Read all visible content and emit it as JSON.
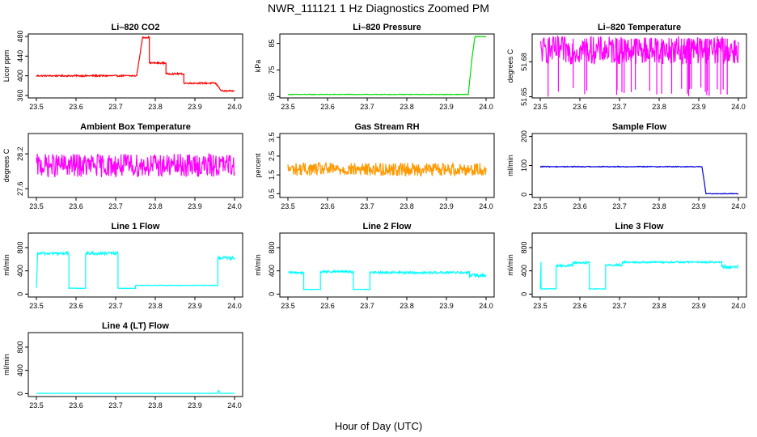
{
  "figure": {
    "title": "NWR_111121  1 Hz Diagnostics Zoomed PM",
    "xlabel": "Hour of Day (UTC)"
  },
  "chart_data": [
    {
      "type": "line",
      "title": "Li–820 CO2",
      "ylabel": "Licor ppm",
      "color": "#ff0000",
      "xlim": [
        23.5,
        24.0
      ],
      "ylim": [
        355,
        485
      ],
      "xticks": [
        "23.5",
        "23.6",
        "23.7",
        "23.8",
        "23.9",
        "24.0"
      ],
      "yticks": [
        {
          "v": 360,
          "label": "360"
        },
        {
          "v": 400,
          "label": "400"
        },
        {
          "v": 440,
          "label": "440"
        },
        {
          "v": 480,
          "label": "480"
        }
      ],
      "segments": [
        {
          "x0": 23.5,
          "x1": 23.753,
          "y": 400,
          "noise": 1.5
        },
        {
          "x0": 23.753,
          "x1": 23.768,
          "y": 400,
          "y_end": 478,
          "noise": 1.5
        },
        {
          "x0": 23.768,
          "x1": 23.785,
          "y": 478,
          "noise": 1.5
        },
        {
          "x0": 23.785,
          "x1": 23.827,
          "y": 426,
          "noise": 1.5
        },
        {
          "x0": 23.827,
          "x1": 23.872,
          "y": 404,
          "noise": 1.5
        },
        {
          "x0": 23.872,
          "x1": 23.952,
          "y": 385,
          "noise": 1.5
        },
        {
          "x0": 23.952,
          "x1": 23.968,
          "y": 385,
          "y_end": 369,
          "noise": 1.5
        },
        {
          "x0": 23.968,
          "x1": 24.0,
          "y": 369,
          "noise": 1.5
        }
      ]
    },
    {
      "type": "line",
      "title": "Li–820 Pressure",
      "ylabel": "kPa",
      "color": "#00dd00",
      "xlim": [
        23.5,
        24.0
      ],
      "ylim": [
        64.5,
        88.5
      ],
      "xticks": [
        "23.5",
        "23.6",
        "23.7",
        "23.8",
        "23.9",
        "24.0"
      ],
      "yticks": [
        {
          "v": 65,
          "label": "65"
        },
        {
          "v": 75,
          "label": "75"
        },
        {
          "v": 85,
          "label": "85"
        }
      ],
      "segments": [
        {
          "x0": 23.5,
          "x1": 23.955,
          "y": 65.8,
          "noise": 0.1
        },
        {
          "x0": 23.955,
          "x1": 23.965,
          "y": 65.8,
          "y_end": 80,
          "noise": 0.2
        },
        {
          "x0": 23.965,
          "x1": 23.972,
          "y": 80,
          "y_end": 87.5,
          "noise": 0.2
        },
        {
          "x0": 23.972,
          "x1": 24.0,
          "y": 87.5,
          "noise": 0.1
        }
      ]
    },
    {
      "type": "line",
      "title": "Li–820 Temperature",
      "ylabel": "degrees C",
      "color": "#ff00ff",
      "xlim": [
        23.5,
        24.0
      ],
      "ylim": [
        51.649,
        51.704
      ],
      "xticks": [
        "23.5",
        "23.6",
        "23.7",
        "23.8",
        "23.9",
        "24.0"
      ],
      "yticks": [
        {
          "v": 51.65,
          "label": "51.65"
        },
        {
          "v": 51.68,
          "label": "51.68"
        }
      ],
      "segments": [
        {
          "x0": 23.5,
          "x1": 24.0,
          "y": 51.69,
          "noise": 0.012
        }
      ],
      "spikes": {
        "min": 51.65,
        "max": 51.7,
        "count": 30
      }
    },
    {
      "type": "line",
      "title": "Ambient Box Temperature",
      "ylabel": "degrees C",
      "color": "#ff00ff",
      "xlim": [
        23.5,
        24.0
      ],
      "ylim": [
        27.45,
        28.55
      ],
      "xticks": [
        "23.5",
        "23.6",
        "23.7",
        "23.8",
        "23.9",
        "24.0"
      ],
      "yticks": [
        {
          "v": 27.6,
          "label": "27.6"
        },
        {
          "v": 28.2,
          "label": "28.2"
        }
      ],
      "segments": [
        {
          "x0": 23.5,
          "x1": 24.0,
          "y": 28.0,
          "noise": 0.2
        }
      ]
    },
    {
      "type": "line",
      "title": "Gas Stream RH",
      "ylabel": "percent",
      "color": "#ff9900",
      "xlim": [
        23.5,
        24.0
      ],
      "ylim": [
        0.3,
        3.7
      ],
      "xticks": [
        "23.5",
        "23.6",
        "23.7",
        "23.8",
        "23.9",
        "24.0"
      ],
      "yticks": [
        {
          "v": 0.5,
          "label": "0.5"
        },
        {
          "v": 1.5,
          "label": "1.5"
        },
        {
          "v": 2.5,
          "label": "2.5"
        },
        {
          "v": 3.5,
          "label": "3.5"
        }
      ],
      "segments": [
        {
          "x0": 23.5,
          "x1": 24.0,
          "y": 1.8,
          "noise": 0.35
        }
      ]
    },
    {
      "type": "line",
      "title": "Sample Flow",
      "ylabel": "ml/min",
      "color": "#0000dd",
      "xlim": [
        23.5,
        24.0
      ],
      "ylim": [
        -10,
        210
      ],
      "xticks": [
        "23.5",
        "23.6",
        "23.7",
        "23.8",
        "23.9",
        "24.0"
      ],
      "yticks": [
        {
          "v": 0,
          "label": "0"
        },
        {
          "v": 100,
          "label": "100"
        },
        {
          "v": 200,
          "label": "200"
        }
      ],
      "segments": [
        {
          "x0": 23.5,
          "x1": 23.908,
          "y": 96,
          "noise": 1.5
        },
        {
          "x0": 23.908,
          "x1": 23.918,
          "y": 96,
          "y_end": 4,
          "noise": 1.5
        },
        {
          "x0": 23.918,
          "x1": 24.0,
          "y": 3,
          "noise": 1.0
        }
      ]
    },
    {
      "type": "line",
      "title": "Line 1 Flow",
      "ylabel": "ml/min",
      "color": "#00ffff",
      "xlim": [
        23.5,
        24.0
      ],
      "ylim": [
        -50,
        1050
      ],
      "xticks": [
        "23.5",
        "23.6",
        "23.7",
        "23.8",
        "23.9",
        "24.0"
      ],
      "yticks": [
        {
          "v": 0,
          "label": "0"
        },
        {
          "v": 400,
          "label": "400"
        },
        {
          "v": 800,
          "label": "800"
        }
      ],
      "segments": [
        {
          "x0": 23.5,
          "x1": 23.503,
          "y": 100,
          "y_end": 700,
          "noise": 10
        },
        {
          "x0": 23.503,
          "x1": 23.582,
          "y": 700,
          "noise": 25
        },
        {
          "x0": 23.582,
          "x1": 23.624,
          "y": 100,
          "noise": 5
        },
        {
          "x0": 23.624,
          "x1": 23.706,
          "y": 700,
          "noise": 25
        },
        {
          "x0": 23.706,
          "x1": 23.75,
          "y": 100,
          "noise": 5
        },
        {
          "x0": 23.75,
          "x1": 23.958,
          "y": 150,
          "noise": 5
        },
        {
          "x0": 23.958,
          "x1": 24.0,
          "y": 620,
          "noise": 30
        }
      ]
    },
    {
      "type": "line",
      "title": "Line 2 Flow",
      "ylabel": "ml/min",
      "color": "#00ffff",
      "xlim": [
        23.5,
        24.0
      ],
      "ylim": [
        -50,
        1050
      ],
      "xticks": [
        "23.5",
        "23.6",
        "23.7",
        "23.8",
        "23.9",
        "24.0"
      ],
      "yticks": [
        {
          "v": 0,
          "label": "0"
        },
        {
          "v": 400,
          "label": "400"
        },
        {
          "v": 800,
          "label": "800"
        }
      ],
      "segments": [
        {
          "x0": 23.5,
          "x1": 23.54,
          "y": 370,
          "noise": 20
        },
        {
          "x0": 23.54,
          "x1": 23.582,
          "y": 80,
          "noise": 5
        },
        {
          "x0": 23.582,
          "x1": 23.665,
          "y": 385,
          "noise": 20
        },
        {
          "x0": 23.665,
          "x1": 23.707,
          "y": 80,
          "noise": 5
        },
        {
          "x0": 23.707,
          "x1": 23.958,
          "y": 370,
          "noise": 20
        },
        {
          "x0": 23.958,
          "x1": 24.0,
          "y": 320,
          "noise": 30
        }
      ]
    },
    {
      "type": "line",
      "title": "Line 3 Flow",
      "ylabel": "ml/min",
      "color": "#00ffff",
      "xlim": [
        23.5,
        24.0
      ],
      "ylim": [
        -50,
        1050
      ],
      "xticks": [
        "23.5",
        "23.6",
        "23.7",
        "23.8",
        "23.9",
        "24.0"
      ],
      "yticks": [
        {
          "v": 0,
          "label": "0"
        },
        {
          "v": 400,
          "label": "400"
        },
        {
          "v": 800,
          "label": "800"
        }
      ],
      "segments": [
        {
          "x0": 23.5,
          "x1": 23.502,
          "y": 100,
          "y_end": 560,
          "noise": 5
        },
        {
          "x0": 23.502,
          "x1": 23.54,
          "y": 90,
          "noise": 5
        },
        {
          "x0": 23.54,
          "x1": 23.582,
          "y": 490,
          "noise": 20
        },
        {
          "x0": 23.582,
          "x1": 23.624,
          "y": 540,
          "noise": 20
        },
        {
          "x0": 23.624,
          "x1": 23.665,
          "y": 90,
          "noise": 5
        },
        {
          "x0": 23.665,
          "x1": 23.707,
          "y": 500,
          "noise": 20
        },
        {
          "x0": 23.707,
          "x1": 23.958,
          "y": 550,
          "noise": 15
        },
        {
          "x0": 23.958,
          "x1": 24.0,
          "y": 470,
          "noise": 30
        }
      ]
    },
    {
      "type": "line",
      "title": "Line 4 (LT) Flow",
      "ylabel": "ml/min",
      "color": "#00ffff",
      "xlim": [
        23.5,
        24.0
      ],
      "ylim": [
        -50,
        1050
      ],
      "xticks": [
        "23.5",
        "23.6",
        "23.7",
        "23.8",
        "23.9",
        "24.0"
      ],
      "yticks": [
        {
          "v": 0,
          "label": "0"
        },
        {
          "v": 400,
          "label": "400"
        },
        {
          "v": 800,
          "label": "800"
        }
      ],
      "segments": [
        {
          "x0": 23.5,
          "x1": 23.957,
          "y": 5,
          "noise": 2
        },
        {
          "x0": 23.957,
          "x1": 23.96,
          "y": 5,
          "y_end": 60,
          "noise": 2
        },
        {
          "x0": 23.96,
          "x1": 23.963,
          "y": 60,
          "y_end": 5,
          "noise": 2
        },
        {
          "x0": 23.963,
          "x1": 24.0,
          "y": 5,
          "noise": 2
        }
      ]
    }
  ]
}
